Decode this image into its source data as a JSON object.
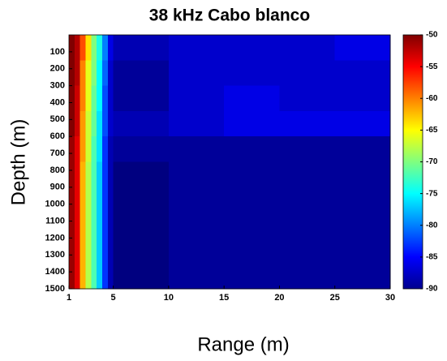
{
  "chart_data": {
    "type": "heatmap",
    "title": "38 kHz Cabo blanco",
    "x_label": "Range (m)",
    "y_label": "Depth (m)",
    "x_edges": [
      1,
      1.5,
      2,
      2.5,
      3,
      3.5,
      4,
      4.5,
      5,
      10,
      15,
      20,
      25,
      30
    ],
    "y_edges": [
      0,
      150,
      300,
      450,
      600,
      750,
      900,
      1050,
      1200,
      1350,
      1500
    ],
    "values": [
      [
        -50,
        -52,
        -58,
        -64,
        -70,
        -74,
        -80,
        -86,
        -88,
        -87,
        -87,
        -87,
        -86
      ],
      [
        -50,
        -52,
        -60,
        -66,
        -70,
        -75,
        -81,
        -87,
        -89,
        -87,
        -87,
        -87,
        -87
      ],
      [
        -50,
        -53,
        -60,
        -66,
        -71,
        -75,
        -82,
        -87,
        -89,
        -87,
        -86,
        -87,
        -87
      ],
      [
        -50,
        -53,
        -61,
        -67,
        -71,
        -76,
        -82,
        -87,
        -88,
        -87,
        -86,
        -86,
        -86
      ],
      [
        -51,
        -54,
        -61,
        -67,
        -72,
        -76,
        -83,
        -88,
        -89,
        -89,
        -89,
        -89,
        -89
      ],
      [
        -51,
        -54,
        -62,
        -68,
        -72,
        -77,
        -83,
        -88,
        -90,
        -89,
        -89,
        -89,
        -89
      ],
      [
        -51,
        -54,
        -62,
        -68,
        -72,
        -77,
        -83,
        -88,
        -90,
        -89,
        -89,
        -89,
        -89
      ],
      [
        -51,
        -54,
        -62,
        -68,
        -72,
        -77,
        -83,
        -88,
        -90,
        -89,
        -89,
        -89,
        -89
      ],
      [
        -51,
        -54,
        -62,
        -68,
        -72,
        -77,
        -83,
        -88,
        -90,
        -89,
        -89,
        -89,
        -89
      ],
      [
        -51,
        -54,
        -62,
        -68,
        -72,
        -77,
        -83,
        -88,
        -90,
        -89,
        -89,
        -89,
        -89
      ]
    ],
    "xlim": [
      1,
      30
    ],
    "xticks": [
      1,
      5,
      10,
      15,
      20,
      25,
      30
    ],
    "ylim": [
      0,
      1500
    ],
    "y_inverted": true,
    "yticks": [
      100,
      200,
      300,
      400,
      500,
      600,
      700,
      800,
      900,
      1000,
      1100,
      1200,
      1300,
      1400,
      1500
    ],
    "zlim": [
      -90,
      -50
    ],
    "colorbar_ticks": [
      -50,
      -55,
      -60,
      -65,
      -70,
      -75,
      -80,
      -85,
      -90
    ],
    "colormap": "jet"
  }
}
